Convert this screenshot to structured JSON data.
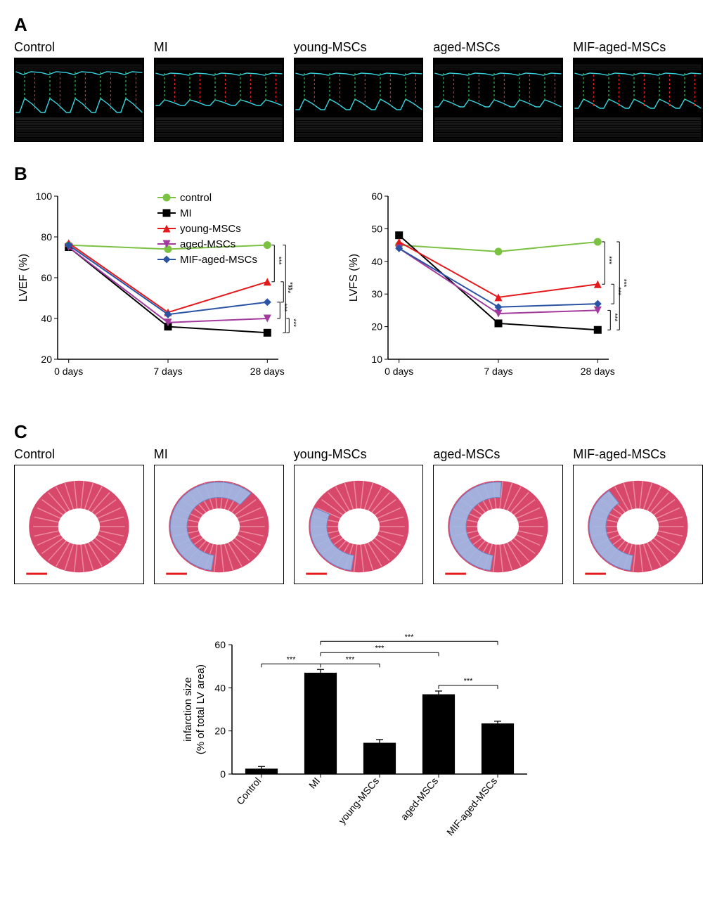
{
  "groups": [
    "Control",
    "MI",
    "young-MSCs",
    "aged-MSCs",
    "MIF-aged-MSCs"
  ],
  "panelLabels": {
    "A": "A",
    "B": "B",
    "C": "C"
  },
  "colors": {
    "control": "#7cc242",
    "MI": "#000000",
    "young": "#e4191c",
    "aged": "#a23a9e",
    "mif_aged": "#2b53a3",
    "bar_fill": "#000000",
    "grid": "#000000",
    "echo_trace": "#37d6e0",
    "echo_dash_green": "#2db84d",
    "echo_dash_red": "#e02020",
    "scale_bar": "#e4191c"
  },
  "echocardiograms": {
    "waveforms": {
      "Control": {
        "top_base": 20,
        "top_amp": 4,
        "bot_base": 78,
        "bot_amp": 20
      },
      "MI": {
        "top_base": 22,
        "top_amp": 3,
        "bot_base": 68,
        "bot_amp": 8
      },
      "young-MSCs": {
        "top_base": 22,
        "top_amp": 3,
        "bot_base": 74,
        "bot_amp": 15
      },
      "aged-MSCs": {
        "top_base": 22,
        "top_amp": 3,
        "bot_base": 70,
        "bot_amp": 10
      },
      "MIF-aged-MSCs": {
        "top_base": 22,
        "top_amp": 3,
        "bot_base": 72,
        "bot_amp": 13
      }
    },
    "cycles": 5
  },
  "lvef_chart": {
    "type": "line",
    "ylabel": "LVEF (%)",
    "ylim": [
      20,
      100
    ],
    "ytick_step": 20,
    "x_categories": [
      "0 days",
      "7 days",
      "28 days"
    ],
    "series": [
      {
        "name": "control",
        "color_key": "control",
        "marker": "circle",
        "values": [
          76,
          74,
          76
        ]
      },
      {
        "name": "MI",
        "color_key": "MI",
        "marker": "square",
        "values": [
          75,
          36,
          33
        ]
      },
      {
        "name": "young-MSCs",
        "color_key": "young",
        "marker": "triangle",
        "values": [
          77,
          43,
          58
        ]
      },
      {
        "name": "aged-MSCs",
        "color_key": "aged",
        "marker": "tri-down",
        "values": [
          75,
          38,
          40
        ]
      },
      {
        "name": "MIF-aged-MSCs",
        "color_key": "mif_aged",
        "marker": "diamond",
        "values": [
          76,
          42,
          48
        ]
      }
    ],
    "sig_annotations": [
      {
        "between": [
          "control",
          "young-MSCs"
        ],
        "label": "***"
      },
      {
        "between": [
          "young-MSCs",
          "MIF-aged-MSCs"
        ],
        "label": "***"
      },
      {
        "between": [
          "MIF-aged-MSCs",
          "aged-MSCs"
        ],
        "label": "***"
      },
      {
        "between": [
          "aged-MSCs",
          "MI"
        ],
        "label": "***"
      },
      {
        "between": [
          "control",
          "MI"
        ],
        "label": "***"
      }
    ],
    "label_fontsize": 16,
    "tick_fontsize": 14
  },
  "lvfs_chart": {
    "type": "line",
    "ylabel": "LVFS (%)",
    "ylim": [
      10,
      60
    ],
    "ytick_step": 10,
    "x_categories": [
      "0 days",
      "7 days",
      "28 days"
    ],
    "series": [
      {
        "name": "control",
        "color_key": "control",
        "marker": "circle",
        "values": [
          45,
          43,
          46
        ]
      },
      {
        "name": "MI",
        "color_key": "MI",
        "marker": "square",
        "values": [
          48,
          21,
          19
        ]
      },
      {
        "name": "young-MSCs",
        "color_key": "young",
        "marker": "triangle",
        "values": [
          46,
          29,
          33
        ]
      },
      {
        "name": "aged-MSCs",
        "color_key": "aged",
        "marker": "tri-down",
        "values": [
          44,
          24,
          25
        ]
      },
      {
        "name": "MIF-aged-MSCs",
        "color_key": "mif_aged",
        "marker": "diamond",
        "values": [
          44,
          26,
          27
        ]
      }
    ],
    "sig_annotations": [
      {
        "between": [
          "control",
          "young-MSCs"
        ],
        "label": "***"
      },
      {
        "between": [
          "young-MSCs",
          "MIF-aged-MSCs"
        ],
        "label": "***"
      },
      {
        "between": [
          "aged-MSCs",
          "MI"
        ],
        "label": "***"
      },
      {
        "between": [
          "control",
          "MI"
        ],
        "label": "***"
      }
    ],
    "label_fontsize": 16,
    "tick_fontsize": 14
  },
  "legend_items": [
    {
      "label": "control",
      "color_key": "control",
      "marker": "circle"
    },
    {
      "label": "MI",
      "color_key": "MI",
      "marker": "square"
    },
    {
      "label": "young-MSCs",
      "color_key": "young",
      "marker": "triangle"
    },
    {
      "label": "aged-MSCs",
      "color_key": "aged",
      "marker": "tri-down"
    },
    {
      "label": "MIF-aged-MSCs",
      "color_key": "mif_aged",
      "marker": "diamond"
    }
  ],
  "infarct_bar": {
    "type": "bar",
    "ylabel": "infarction size\n(% of total LV area)",
    "ylim": [
      0,
      60
    ],
    "ytick_step": 20,
    "categories": [
      "Control",
      "MI",
      "young-MSCs",
      "aged-MSCs",
      "MIF-aged-MSCs"
    ],
    "values": [
      2.5,
      47,
      14.5,
      37,
      23.5
    ],
    "errors": [
      1.0,
      1.5,
      1.5,
      1.5,
      1.0
    ],
    "bar_color": "#000000",
    "bar_width": 0.55,
    "sig_annotations": [
      {
        "pair": [
          0,
          1
        ],
        "level": 1,
        "label": "***"
      },
      {
        "pair": [
          1,
          2
        ],
        "level": 1,
        "label": "***"
      },
      {
        "pair": [
          3,
          4
        ],
        "level": 1,
        "label": "***"
      },
      {
        "pair": [
          1,
          3
        ],
        "level": 2,
        "label": "***"
      },
      {
        "pair": [
          1,
          4
        ],
        "level": 3,
        "label": "***"
      }
    ],
    "label_fontsize": 15,
    "tick_fontsize": 14
  }
}
